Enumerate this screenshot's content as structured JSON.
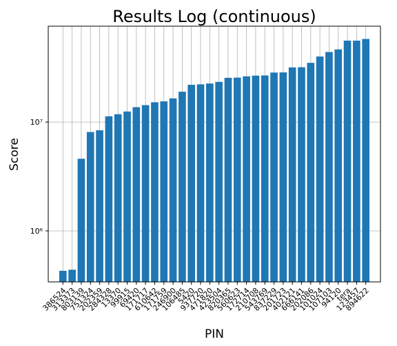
{
  "chart_data": {
    "type": "bar",
    "title": "Results Log (continuous)",
    "xlabel": "PIN",
    "ylabel": "Score",
    "categories": [
      "386524",
      "313373",
      "803139",
      "751324",
      "202359",
      "284328",
      "13370",
      "99915",
      "69420",
      "171717",
      "610642",
      "171759",
      "246900",
      "106485",
      "5420",
      "937720",
      "471820",
      "423504",
      "820365",
      "560623",
      "172714",
      "210708",
      "543769",
      "837229",
      "201723",
      "402121",
      "666141",
      "202086",
      "101024",
      "107103",
      "94120",
      "tera",
      "123457",
      "894622"
    ],
    "values": [
      430000,
      440000,
      4600000,
      8100000,
      8400000,
      11300000,
      11800000,
      12500000,
      13700000,
      14300000,
      15200000,
      15500000,
      16500000,
      19000000,
      22000000,
      22200000,
      22600000,
      23400000,
      25500000,
      25600000,
      26300000,
      26700000,
      26800000,
      28500000,
      28600000,
      31800000,
      31900000,
      35000000,
      40000000,
      44000000,
      46500000,
      56000000,
      56000000,
      58000000
    ],
    "color": "#1f77b4",
    "log_scale": true,
    "grid": true,
    "ylim": [
      340000,
      76000000
    ],
    "yticks": [
      {
        "value": 1000000,
        "label": "10⁶"
      },
      {
        "value": 10000000,
        "label": "10⁷"
      }
    ]
  }
}
